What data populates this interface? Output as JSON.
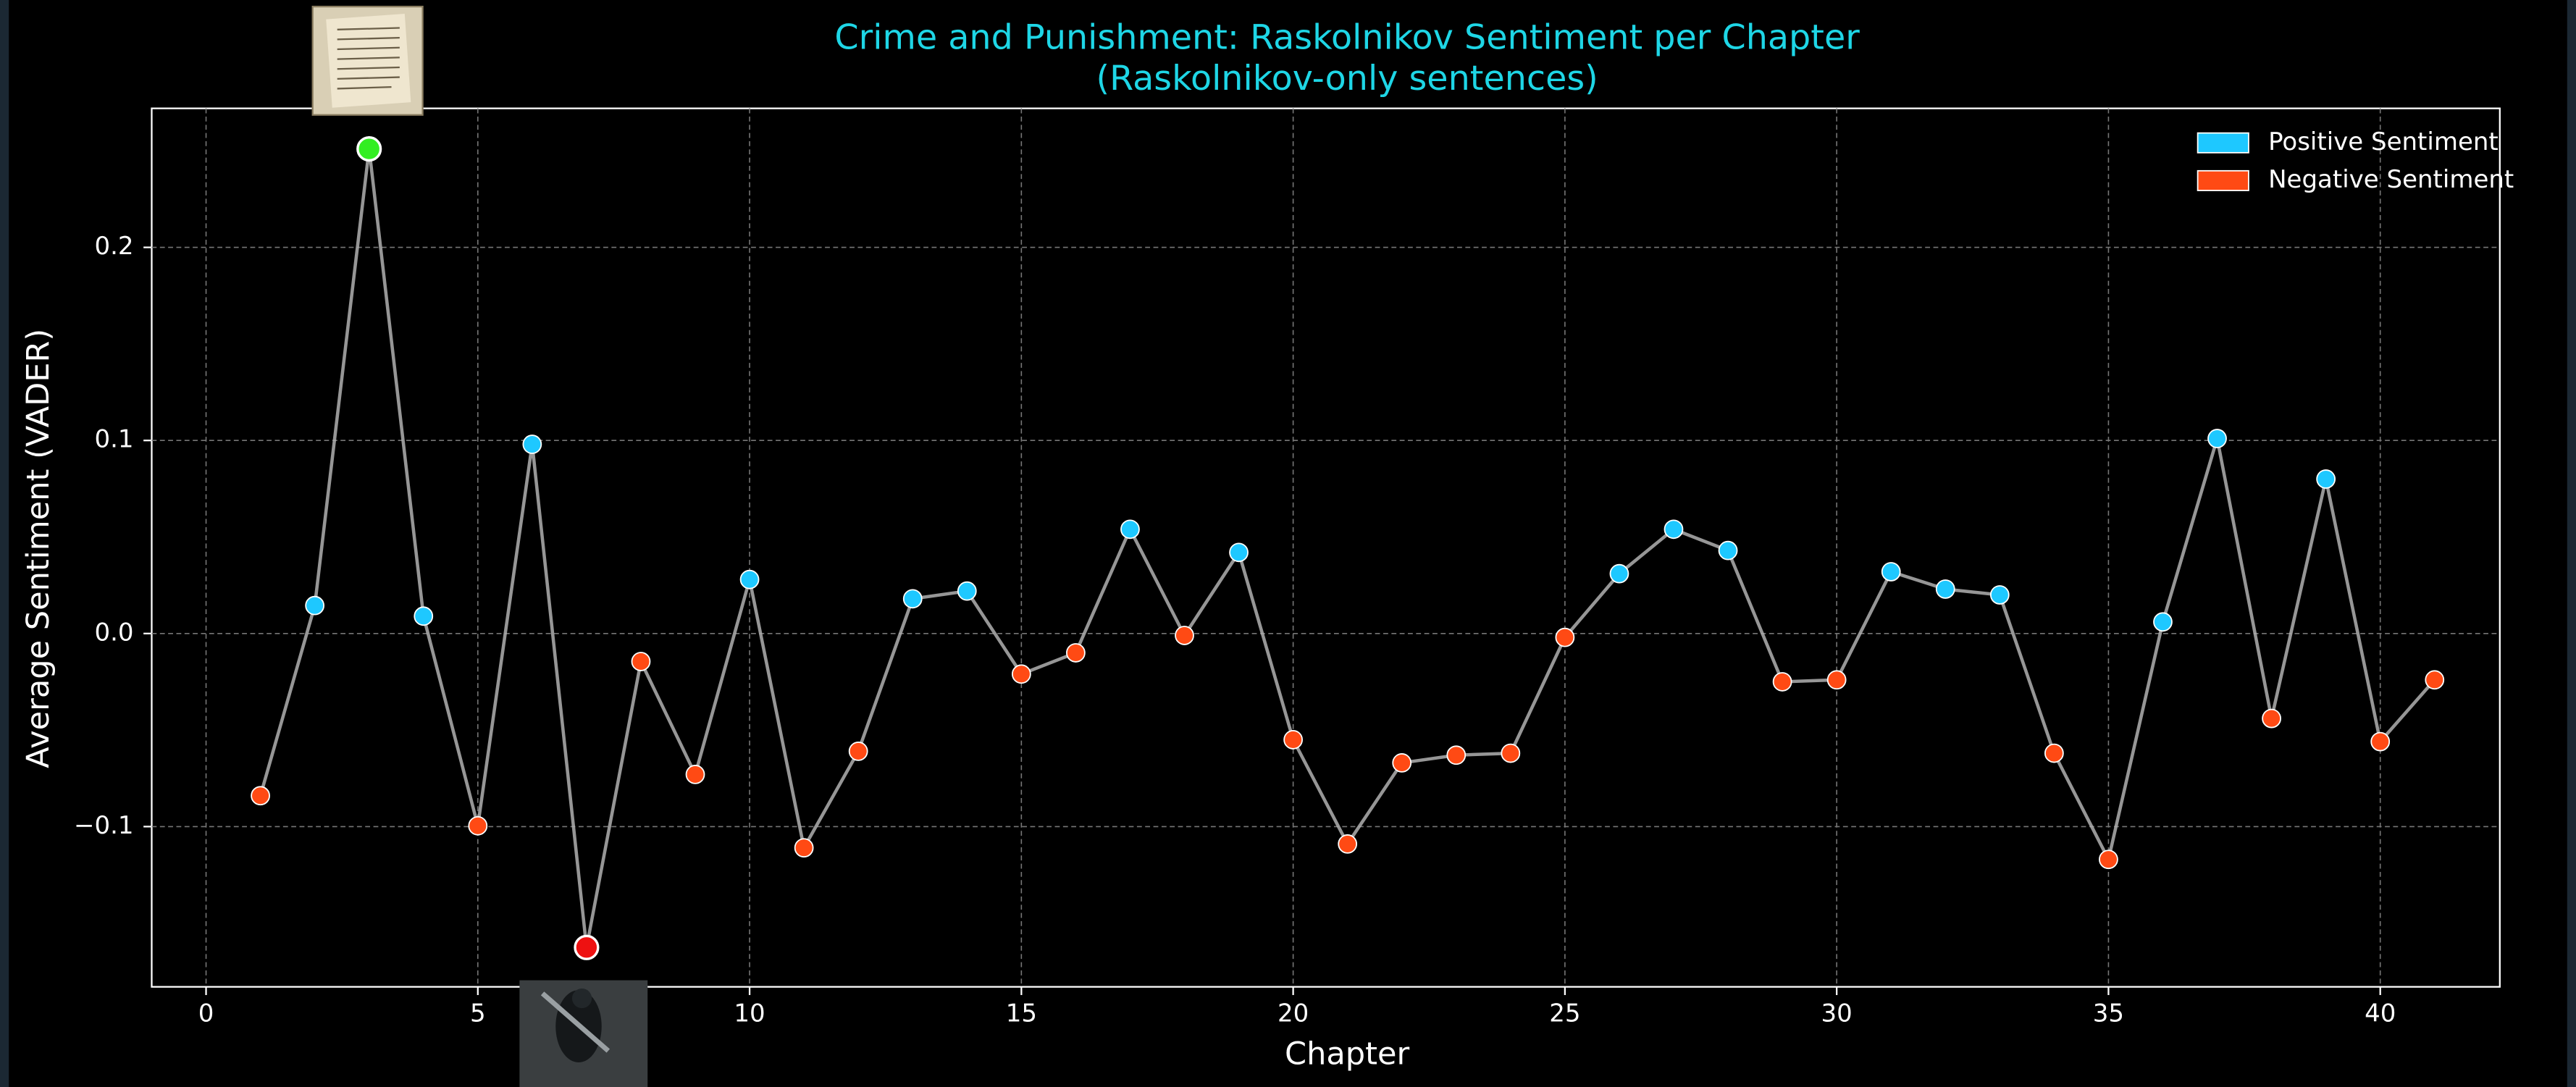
{
  "chart_data": {
    "type": "line",
    "title": "Crime and Punishment: Raskolnikov Sentiment per Chapter",
    "subtitle": "(Raskolnikov-only sentences)",
    "x_label": "Chapter",
    "y_label": "Average Sentiment (VADER)",
    "x": [
      1,
      2,
      3,
      4,
      5,
      6,
      7,
      8,
      9,
      10,
      11,
      12,
      13,
      14,
      15,
      16,
      17,
      18,
      19,
      20,
      21,
      22,
      23,
      24,
      25,
      26,
      27,
      28,
      29,
      30,
      31,
      32,
      33,
      34,
      35,
      36,
      37,
      38,
      39,
      40,
      41
    ],
    "series": [
      {
        "values": [
          -0.084,
          0.0145,
          0.251,
          0.009,
          -0.0996,
          0.098,
          -0.1626,
          -0.0145,
          -0.073,
          0.028,
          -0.111,
          -0.061,
          0.018,
          0.022,
          -0.021,
          -0.01,
          0.054,
          -0.001,
          0.042,
          -0.055,
          -0.109,
          -0.067,
          -0.063,
          -0.062,
          -0.002,
          0.031,
          0.054,
          0.043,
          -0.025,
          -0.024,
          0.032,
          0.023,
          0.02,
          -0.062,
          -0.117,
          0.006,
          0.101,
          -0.044,
          0.08,
          -0.056,
          -0.024
        ]
      }
    ],
    "line_color": "#b0b0b0",
    "legend": [
      {
        "name": "Positive Sentiment",
        "color": "#1ec8ff"
      },
      {
        "name": "Negative Sentiment",
        "color": "#ff4a14"
      }
    ],
    "max_color": "#33ee22",
    "min_color": "#ee1111",
    "legend_position": "upper right",
    "grid": true,
    "xlim": [
      -1,
      42.2
    ],
    "ylim": [
      -0.183,
      0.272
    ],
    "xticks": [
      0,
      5,
      10,
      15,
      20,
      25,
      30,
      35,
      40
    ],
    "yticks": [
      {
        "value": -0.1,
        "label": "−0.1"
      },
      {
        "value": 0.0,
        "label": "0.0"
      },
      0.1,
      0.2
    ]
  }
}
